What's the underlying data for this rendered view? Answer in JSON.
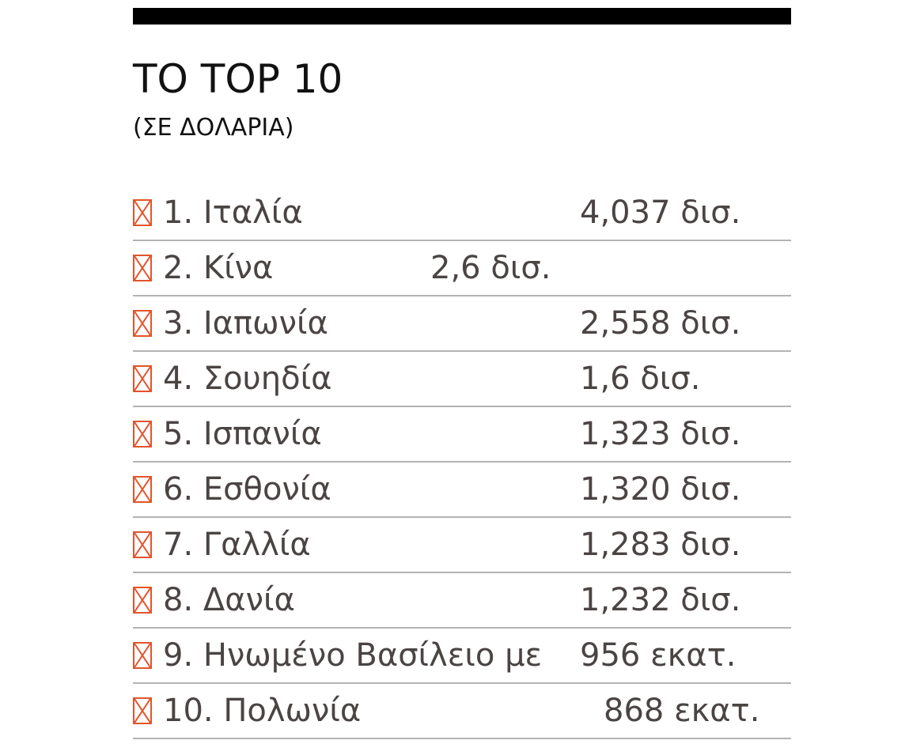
{
  "header": {
    "title": "ΤΟ TOP 10",
    "subtitle": "(ΣΕ ΔΟΛΑΡΙΑ)"
  },
  "colors": {
    "marker": "#e2542c",
    "text": "#4a4443",
    "divider": "#b3b3b3",
    "bar": "#000000"
  },
  "rows": [
    {
      "label": "1. Ιταλία",
      "value": "4,037 δισ."
    },
    {
      "label": "2. Κίνα",
      "value": "2,6 δισ."
    },
    {
      "label": "3. Ιαπωνία",
      "value": "2,558 δισ."
    },
    {
      "label": "4. Σουηδία",
      "value": "1,6 δισ."
    },
    {
      "label": "5. Ισπανία",
      "value": "1,323 δισ."
    },
    {
      "label": "6. Εσθονία",
      "value": "1,320 δισ."
    },
    {
      "label": "7. Γαλλία",
      "value": "1,283 δισ."
    },
    {
      "label": "8. Δανία",
      "value": "1,232 δισ."
    },
    {
      "label": "9. Ηνωμένο Βασίλειο με",
      "value": "956 εκατ."
    },
    {
      "label": "10. Πολωνία",
      "value": "868 εκατ."
    }
  ]
}
